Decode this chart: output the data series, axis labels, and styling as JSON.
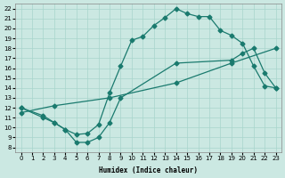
{
  "xlabel": "Humidex (Indice chaleur)",
  "bg_color": "#cbe8e2",
  "line_color": "#1a7a6e",
  "grid_color": "#a8d5cc",
  "xlim": [
    -0.5,
    23.5
  ],
  "ylim": [
    7.5,
    22.5
  ],
  "xticks": [
    0,
    1,
    2,
    3,
    4,
    5,
    6,
    7,
    8,
    9,
    10,
    11,
    12,
    13,
    14,
    15,
    16,
    17,
    18,
    19,
    20,
    21,
    22,
    23
  ],
  "yticks": [
    8,
    9,
    10,
    11,
    12,
    13,
    14,
    15,
    16,
    17,
    18,
    19,
    20,
    21,
    22
  ],
  "upper_x": [
    0,
    2,
    3,
    4,
    5,
    6,
    7,
    8,
    9,
    10,
    11,
    12,
    13,
    14,
    15,
    16,
    17,
    18,
    19,
    20,
    21,
    22,
    23
  ],
  "upper_y": [
    12.0,
    11.2,
    10.5,
    9.8,
    9.3,
    9.4,
    10.3,
    13.5,
    16.2,
    18.8,
    19.2,
    20.3,
    21.1,
    22.0,
    21.5,
    21.2,
    21.2,
    19.8,
    19.3,
    18.5,
    16.2,
    14.2,
    14.0
  ],
  "diag1_x": [
    0,
    3,
    8,
    14,
    19,
    23
  ],
  "diag1_y": [
    11.5,
    12.2,
    13.0,
    14.5,
    16.5,
    18.0
  ],
  "lower_x": [
    0,
    2,
    3,
    4,
    5,
    6,
    7,
    8,
    9,
    14,
    19,
    20,
    21,
    22,
    23
  ],
  "lower_y": [
    12.0,
    11.0,
    10.5,
    9.8,
    8.5,
    8.5,
    9.0,
    10.5,
    13.0,
    16.5,
    16.8,
    17.5,
    18.0,
    15.5,
    14.0
  ]
}
